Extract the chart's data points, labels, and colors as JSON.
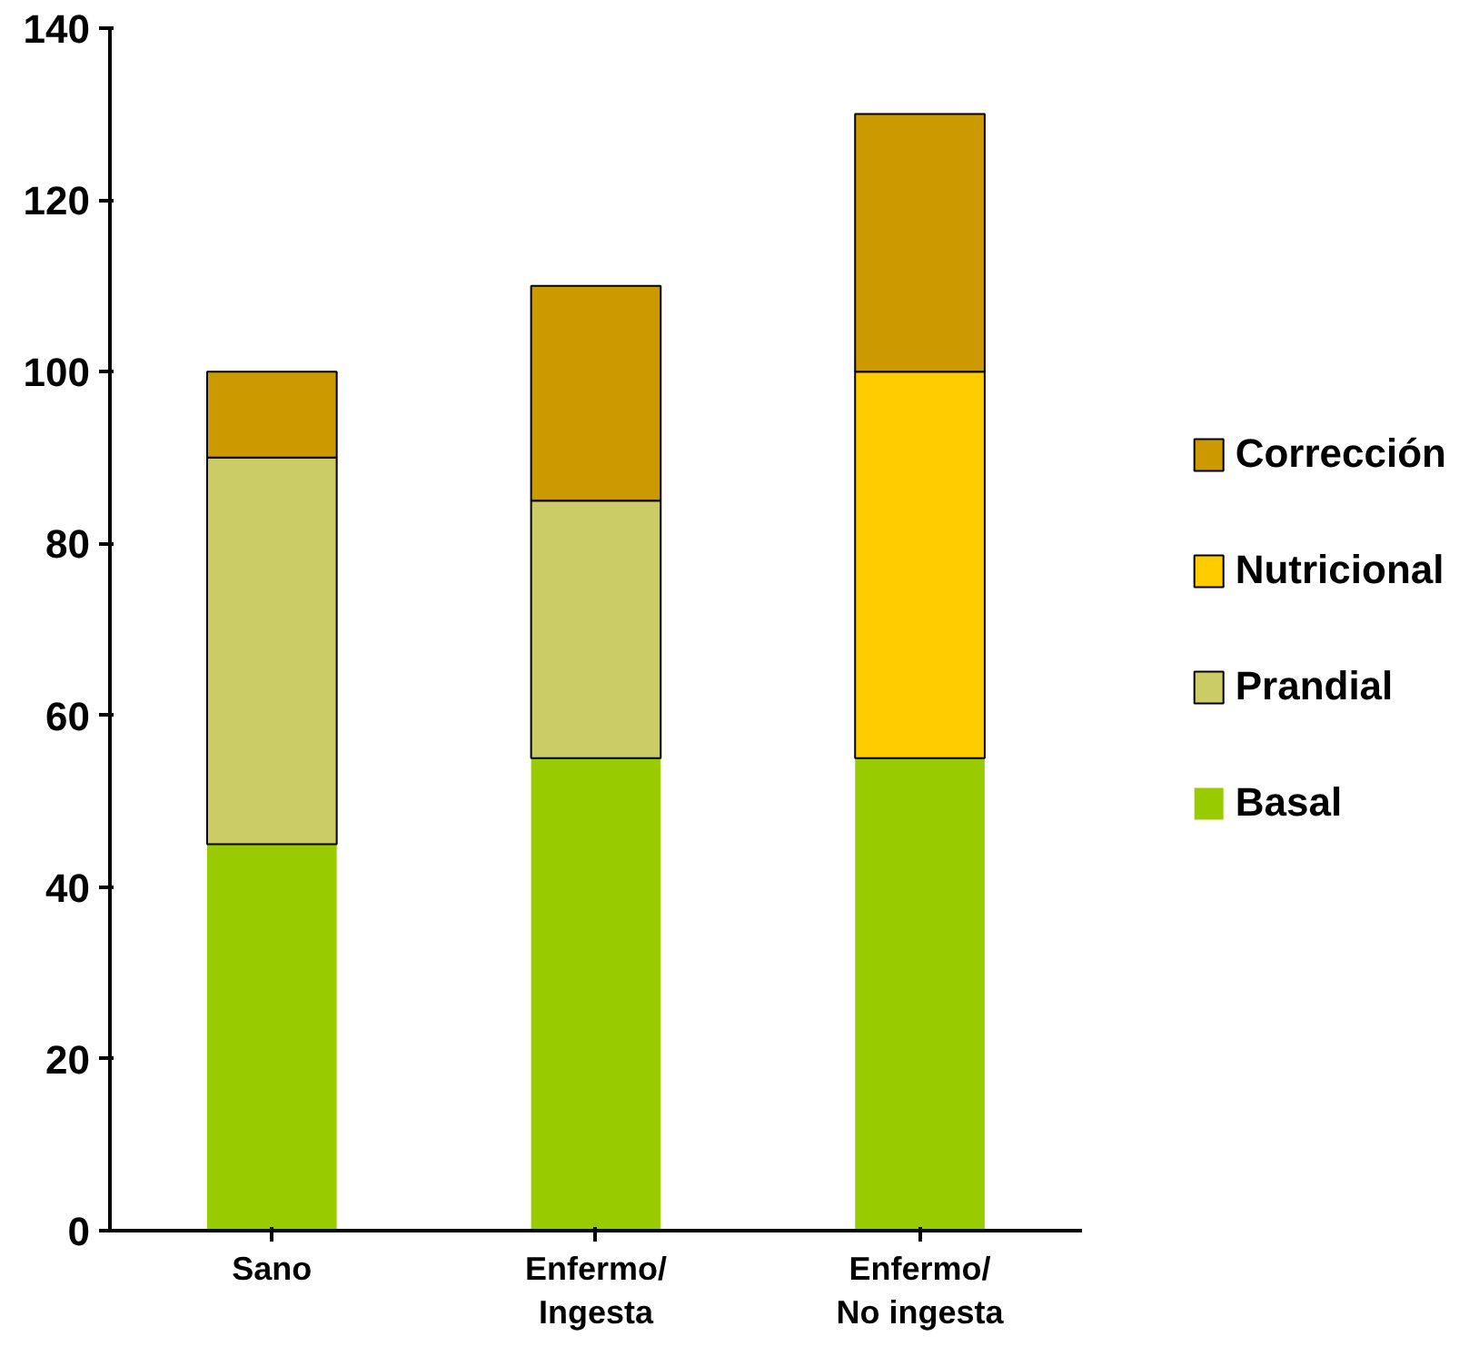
{
  "chart_data": {
    "type": "bar",
    "stacked": true,
    "categories": [
      "Sano",
      "Enfermo/\nIngesta",
      "Enfermo/\nNo ingesta"
    ],
    "series": [
      {
        "name": "Basal",
        "color": "#99cc00",
        "values": [
          45,
          55,
          55
        ]
      },
      {
        "name": "Prandial",
        "color": "#cccc66",
        "values": [
          45,
          30,
          null
        ]
      },
      {
        "name": "Nutricional",
        "color": "#ffcc00",
        "values": [
          null,
          null,
          45
        ]
      },
      {
        "name": "Corrección",
        "color": "#cc9900",
        "values": [
          10,
          25,
          30
        ]
      }
    ],
    "ylim": [
      0,
      140
    ],
    "yticks": [
      0,
      20,
      40,
      60,
      80,
      100,
      120,
      140
    ],
    "grid": false,
    "legend": "right"
  }
}
